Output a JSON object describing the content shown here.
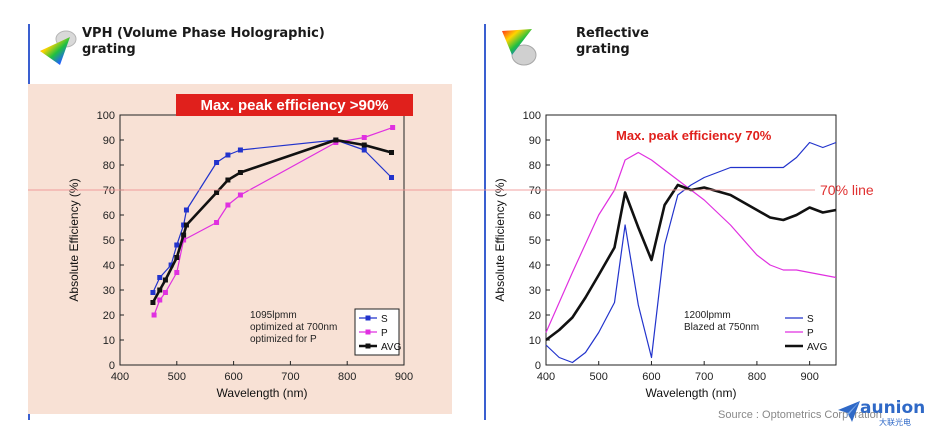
{
  "panels": {
    "left_title": "VPH (Volume Phase Holographic)\ngrating",
    "right_title": "Reflective\ngrating"
  },
  "chart_data": [
    {
      "type": "line",
      "title": "",
      "xlabel": "Wavelength  (nm)",
      "ylabel": "Absolute  Efficiency (%)",
      "xlim": [
        400,
        900
      ],
      "ylim": [
        0,
        100
      ],
      "xticks": [
        400,
        500,
        600,
        700,
        800,
        900
      ],
      "yticks": [
        0,
        10,
        20,
        30,
        40,
        50,
        60,
        70,
        80,
        90,
        100
      ],
      "banner": "Max. peak efficiency >90%",
      "annotation": [
        "1095lpmm",
        "optimized at 700nm",
        "optimized for P"
      ],
      "legend_position": "bottom-right",
      "series": [
        {
          "name": "S",
          "color": "#2233cc",
          "width": 1.2,
          "marker": "square",
          "x": [
            458,
            470,
            490,
            500,
            512,
            517,
            570,
            590,
            612,
            780,
            830,
            878
          ],
          "y": [
            29,
            35,
            40,
            48,
            56,
            62,
            81,
            84,
            86,
            90,
            86,
            75
          ]
        },
        {
          "name": "P",
          "color": "#e030e0",
          "width": 1.2,
          "marker": "square",
          "x": [
            460,
            470,
            480,
            500,
            512,
            570,
            590,
            612,
            780,
            830,
            880
          ],
          "y": [
            20,
            26,
            29,
            37,
            50,
            57,
            64,
            68,
            89,
            91,
            95
          ]
        },
        {
          "name": "AVG",
          "color": "#111111",
          "width": 2.6,
          "marker": "square",
          "x": [
            458,
            470,
            480,
            500,
            512,
            517,
            570,
            590,
            612,
            780,
            830,
            878
          ],
          "y": [
            25,
            30,
            34,
            43,
            52,
            56,
            69,
            74,
            77,
            90,
            88,
            85
          ]
        }
      ]
    },
    {
      "type": "line",
      "title": "",
      "xlabel": "Wavelength  (nm)",
      "ylabel": "Absolute  Efficiency (%)",
      "xlim": [
        400,
        950
      ],
      "ylim": [
        0,
        100
      ],
      "xticks": [
        400,
        500,
        600,
        700,
        800,
        900
      ],
      "yticks": [
        0,
        10,
        20,
        30,
        40,
        50,
        60,
        70,
        80,
        90,
        100
      ],
      "banner": "Max. peak efficiency 70%",
      "annotation": [
        "1200lpmm",
        "Blazed at 750nm"
      ],
      "legend_position": "bottom-right",
      "series": [
        {
          "name": "S",
          "color": "#2233cc",
          "width": 1.2,
          "marker": "none",
          "x": [
            400,
            425,
            450,
            475,
            500,
            530,
            550,
            575,
            600,
            625,
            650,
            675,
            700,
            750,
            800,
            850,
            875,
            900,
            925,
            950
          ],
          "y": [
            8,
            3,
            1,
            5,
            13,
            25,
            56,
            24,
            3,
            48,
            68,
            72,
            75,
            79,
            79,
            79,
            83,
            89,
            87,
            89
          ]
        },
        {
          "name": "P",
          "color": "#e030e0",
          "width": 1.2,
          "marker": "none",
          "x": [
            400,
            450,
            500,
            530,
            550,
            575,
            600,
            625,
            650,
            700,
            750,
            800,
            825,
            850,
            875,
            900,
            925,
            950
          ],
          "y": [
            13,
            37,
            60,
            70,
            82,
            85,
            82,
            78,
            74,
            66,
            56,
            44,
            40,
            38,
            38,
            37,
            36,
            35
          ]
        },
        {
          "name": "AVG",
          "color": "#111111",
          "width": 2.6,
          "marker": "none",
          "x": [
            400,
            425,
            450,
            475,
            500,
            530,
            550,
            575,
            600,
            625,
            650,
            675,
            700,
            750,
            800,
            825,
            850,
            875,
            900,
            925,
            950
          ],
          "y": [
            10,
            14,
            19,
            27,
            36,
            47,
            69,
            55,
            42,
            64,
            72,
            70,
            71,
            68,
            62,
            59,
            58,
            60,
            63,
            61,
            62
          ]
        }
      ]
    }
  ],
  "reference_line": {
    "label": "70% line",
    "value": 70,
    "color": "#f09090"
  },
  "footer": {
    "source": "Source : Optometrics Corporation",
    "brand": "aunion",
    "brand_sub": "大联光电"
  },
  "colors": {
    "accent_bar": "#3a5fd0",
    "banner_bg": "#e0201c",
    "highlight_text": "#e0201c"
  }
}
